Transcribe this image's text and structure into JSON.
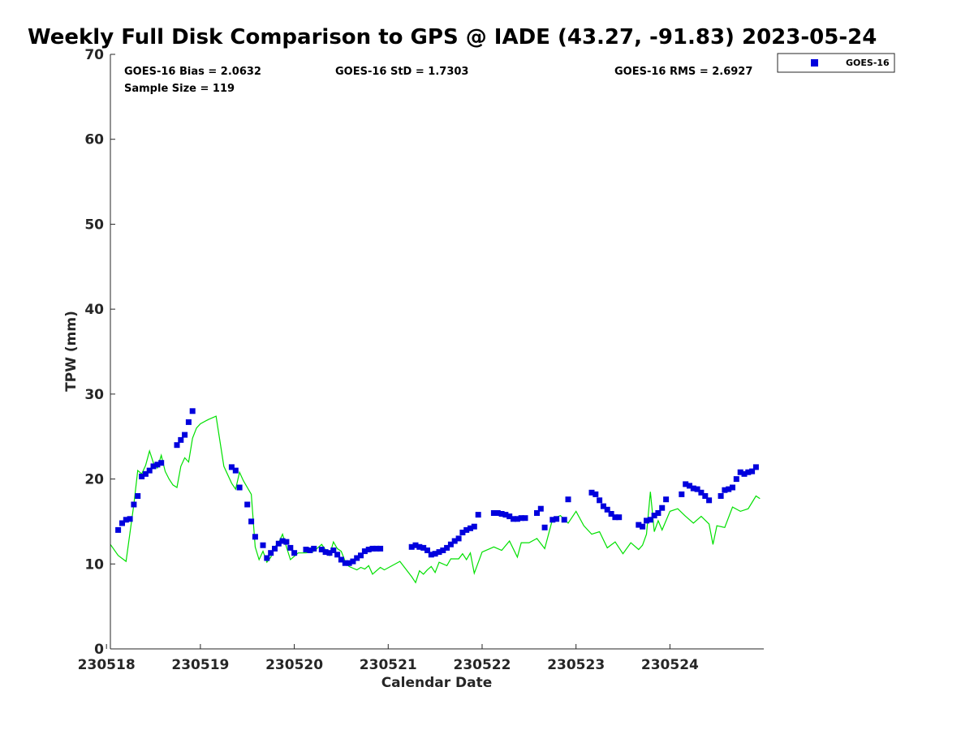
{
  "chart_data": {
    "type": "scatter",
    "title": "Weekly Full Disk Comparison to GPS @ IADE (43.27, -91.83) 2023-05-24",
    "xlabel": "Calendar Date",
    "ylabel": "TPW (mm)",
    "xlim": [
      "230518 01:00",
      "230524 23:59"
    ],
    "ylim": [
      0,
      70
    ],
    "y_ticks": [
      0,
      10,
      20,
      30,
      40,
      50,
      60,
      70
    ],
    "x_ticks": [
      "230518",
      "230519",
      "230520",
      "230521",
      "230522",
      "230523",
      "230524"
    ],
    "legend": {
      "position": "outside-top-right",
      "entries": [
        "GOES-16"
      ]
    },
    "stats": {
      "bias": "GOES-16 Bias = 2.0632",
      "std": "GOES-16 StD = 1.7303",
      "rms": "GOES-16 RMS = 2.6927",
      "sample": "Sample Size = 119"
    },
    "colors": {
      "goes": "#0000dd",
      "gps": "#00e000",
      "axis": "#262626"
    },
    "series": [
      {
        "name": "GOES-16",
        "marker": "square",
        "x": [
          "230518 03:00",
          "230518 04:00",
          "230518 05:00",
          "230518 06:00",
          "230518 07:00",
          "230518 08:00",
          "230518 09:00",
          "230518 10:00",
          "230518 11:00",
          "230518 12:00",
          "230518 13:00",
          "230518 14:00",
          "230518 18:00",
          "230518 19:00",
          "230518 20:00",
          "230518 21:00",
          "230518 22:00",
          "230519 08:00",
          "230519 09:00",
          "230519 10:00",
          "230519 12:00",
          "230519 13:00",
          "230519 14:00",
          "230519 16:00",
          "230519 17:00",
          "230519 18:00",
          "230519 19:00",
          "230519 20:00",
          "230519 21:00",
          "230519 22:00",
          "230519 23:00",
          "230520 00:00",
          "230520 03:00",
          "230520 04:00",
          "230520 05:00",
          "230520 07:00",
          "230520 08:00",
          "230520 09:00",
          "230520 10:00",
          "230520 11:00",
          "230520 12:00",
          "230520 13:00",
          "230520 14:00",
          "230520 15:00",
          "230520 16:00",
          "230520 17:00",
          "230520 18:00",
          "230520 19:00",
          "230520 20:00",
          "230520 21:00",
          "230520 22:00",
          "230521 06:00",
          "230521 07:00",
          "230521 08:00",
          "230521 09:00",
          "230521 10:00",
          "230521 11:00",
          "230521 12:00",
          "230521 13:00",
          "230521 14:00",
          "230521 15:00",
          "230521 16:00",
          "230521 17:00",
          "230521 18:00",
          "230521 19:00",
          "230521 20:00",
          "230521 21:00",
          "230521 22:00",
          "230521 23:00",
          "230522 03:00",
          "230522 04:00",
          "230522 05:00",
          "230522 06:00",
          "230522 07:00",
          "230522 08:00",
          "230522 09:00",
          "230522 10:00",
          "230522 11:00",
          "230522 14:00",
          "230522 15:00",
          "230522 16:00",
          "230522 18:00",
          "230522 19:00",
          "230522 21:00",
          "230522 22:00",
          "230523 04:00",
          "230523 05:00",
          "230523 06:00",
          "230523 07:00",
          "230523 08:00",
          "230523 09:00",
          "230523 10:00",
          "230523 11:00",
          "230523 16:00",
          "230523 17:00",
          "230523 18:00",
          "230523 19:00",
          "230523 20:00",
          "230523 21:00",
          "230523 22:00",
          "230523 23:00",
          "230524 03:00",
          "230524 04:00",
          "230524 05:00",
          "230524 06:00",
          "230524 07:00",
          "230524 08:00",
          "230524 09:00",
          "230524 10:00",
          "230524 13:00",
          "230524 14:00",
          "230524 15:00",
          "230524 16:00",
          "230524 17:00",
          "230524 18:00",
          "230524 19:00",
          "230524 20:00",
          "230524 21:00",
          "230524 22:00"
        ],
        "y": [
          14.0,
          14.8,
          15.2,
          15.3,
          17.0,
          18.0,
          20.3,
          20.6,
          21.0,
          21.5,
          21.7,
          21.9,
          24.0,
          24.6,
          25.2,
          26.7,
          28.0,
          21.4,
          21.0,
          19.0,
          17.0,
          15.0,
          13.2,
          12.2,
          10.7,
          11.3,
          11.8,
          12.4,
          12.7,
          12.6,
          11.9,
          11.3,
          11.7,
          11.6,
          11.8,
          11.7,
          11.4,
          11.3,
          11.6,
          11.1,
          10.5,
          10.1,
          10.1,
          10.3,
          10.7,
          11.0,
          11.5,
          11.7,
          11.8,
          11.8,
          11.8,
          12.0,
          12.2,
          12.0,
          11.9,
          11.6,
          11.1,
          11.2,
          11.4,
          11.6,
          11.9,
          12.3,
          12.7,
          13.0,
          13.7,
          14.0,
          14.2,
          14.4,
          15.8,
          16.0,
          16.0,
          15.9,
          15.8,
          15.6,
          15.3,
          15.3,
          15.4,
          15.4,
          16.0,
          16.5,
          14.3,
          15.2,
          15.3,
          15.2,
          17.6,
          18.4,
          18.2,
          17.5,
          16.8,
          16.4,
          15.9,
          15.5,
          15.5,
          14.6,
          14.4,
          15.1,
          15.2,
          15.7,
          16.0,
          16.6,
          17.6,
          18.2,
          19.4,
          19.2,
          18.9,
          18.8,
          18.4,
          18.0,
          17.5,
          18.0,
          18.7,
          18.8,
          19.0,
          20.0,
          20.8,
          20.6,
          20.8,
          20.9,
          21.4
        ]
      },
      {
        "name": "GPS",
        "marker": "line",
        "x": [
          "230518 01:00",
          "230518 03:00",
          "230518 05:00",
          "230518 07:00",
          "230518 08:00",
          "230518 09:00",
          "230518 10:00",
          "230518 11:00",
          "230518 12:00",
          "230518 13:00",
          "230518 14:00",
          "230518 15:00",
          "230518 16:00",
          "230518 17:00",
          "230518 18:00",
          "230518 19:00",
          "230518 20:00",
          "230518 21:00",
          "230518 22:00",
          "230518 23:00",
          "230519 00:00",
          "230519 02:00",
          "230519 04:00",
          "230519 06:00",
          "230519 08:00",
          "230519 09:00",
          "230519 10:00",
          "230519 11:00",
          "230519 12:00",
          "230519 13:00",
          "230519 14:00",
          "230519 15:00",
          "230519 16:00",
          "230519 17:00",
          "230519 18:00",
          "230519 19:00",
          "230519 20:00",
          "230519 21:00",
          "230519 22:00",
          "230519 23:00",
          "230520 01:00",
          "230520 03:00",
          "230520 05:00",
          "230520 07:00",
          "230520 09:00",
          "230520 10:00",
          "230520 11:00",
          "230520 12:00",
          "230520 13:00",
          "230520 14:00",
          "230520 15:00",
          "230520 16:00",
          "230520 17:00",
          "230520 18:00",
          "230520 19:00",
          "230520 20:00",
          "230520 21:00",
          "230520 22:00",
          "230520 23:00",
          "230521 03:00",
          "230521 06:00",
          "230521 07:00",
          "230521 08:00",
          "230521 09:00",
          "230521 10:00",
          "230521 11:00",
          "230521 12:00",
          "230521 13:00",
          "230521 15:00",
          "230521 16:00",
          "230521 18:00",
          "230521 19:00",
          "230521 20:00",
          "230521 21:00",
          "230521 22:00",
          "230522 00:00",
          "230522 02:00",
          "230522 03:00",
          "230522 05:00",
          "230522 07:00",
          "230522 09:00",
          "230522 10:00",
          "230522 12:00",
          "230522 14:00",
          "230522 16:00",
          "230522 18:00",
          "230522 20:00",
          "230522 22:00",
          "230523 00:00",
          "230523 02:00",
          "230523 04:00",
          "230523 06:00",
          "230523 08:00",
          "230523 10:00",
          "230523 12:00",
          "230523 14:00",
          "230523 16:00",
          "230523 17:00",
          "230523 18:00",
          "230523 19:00",
          "230523 20:00",
          "230523 21:00",
          "230523 22:00",
          "230524 00:00",
          "230524 02:00",
          "230524 04:00",
          "230524 06:00",
          "230524 08:00",
          "230524 10:00",
          "230524 11:00",
          "230524 12:00",
          "230524 14:00",
          "230524 16:00",
          "230524 18:00",
          "230524 20:00",
          "230524 22:00",
          "230524 23:00"
        ],
        "y": [
          12.3,
          11.0,
          10.3,
          17.0,
          21.0,
          20.6,
          21.6,
          23.3,
          21.9,
          21.3,
          22.8,
          20.9,
          20.0,
          19.3,
          19.0,
          21.5,
          22.5,
          22.0,
          24.8,
          26.0,
          26.5,
          27.0,
          27.4,
          21.5,
          19.5,
          18.8,
          20.8,
          19.8,
          19.0,
          18.2,
          12.0,
          10.5,
          11.5,
          10.2,
          10.8,
          12.0,
          12.5,
          13.5,
          12.0,
          10.5,
          11.3,
          11.3,
          11.5,
          12.3,
          11.0,
          12.6,
          11.8,
          11.5,
          10.3,
          9.7,
          9.5,
          9.3,
          9.6,
          9.4,
          9.8,
          8.8,
          9.2,
          9.6,
          9.3,
          10.3,
          8.5,
          7.8,
          9.2,
          8.8,
          9.3,
          9.7,
          9.0,
          10.2,
          9.8,
          10.6,
          10.6,
          11.2,
          10.5,
          11.3,
          8.9,
          11.4,
          11.8,
          12.0,
          11.6,
          12.7,
          10.8,
          12.5,
          12.5,
          13.0,
          11.8,
          15.3,
          15.7,
          14.8,
          16.2,
          14.5,
          13.5,
          13.8,
          11.9,
          12.6,
          11.2,
          12.5,
          11.7,
          12.2,
          13.5,
          18.5,
          13.8,
          15.1,
          14.0,
          16.2,
          16.5,
          15.6,
          14.8,
          15.6,
          14.7,
          12.3,
          14.5,
          14.3,
          16.7,
          16.2,
          16.5,
          18.0,
          17.7
        ]
      }
    ]
  }
}
